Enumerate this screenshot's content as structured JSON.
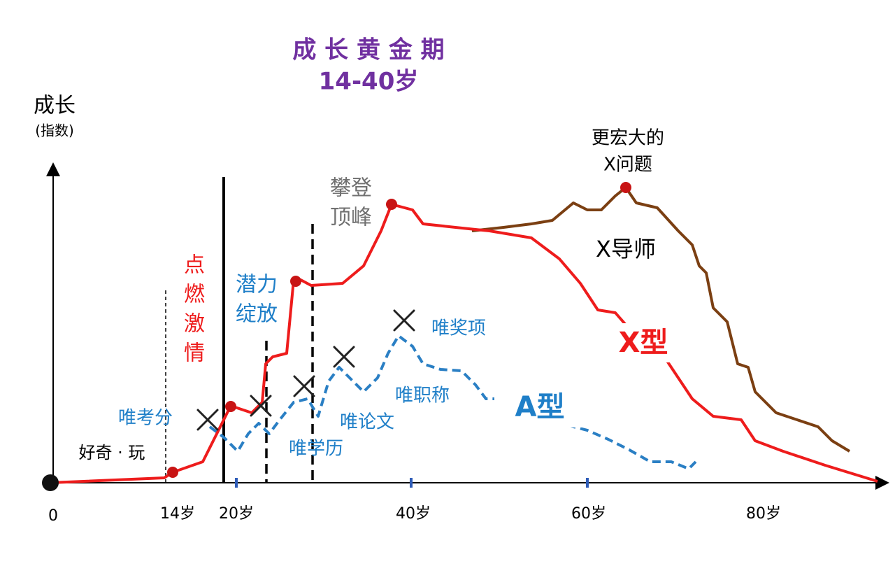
{
  "title": {
    "line1": "成 长 黄 金 期",
    "line2": "14-40岁"
  },
  "y_axis": {
    "label": "成长",
    "sublabel": "(指数)"
  },
  "x_axis": {
    "labels": [
      "0",
      "14岁",
      "20岁",
      "40岁",
      "60岁",
      "80岁"
    ]
  },
  "annotations": {
    "curious": "好奇 · 玩",
    "ignite": [
      "点",
      "燃",
      "激",
      "情"
    ],
    "potential": [
      "潜力",
      "绽放"
    ],
    "summit": [
      "攀登",
      "顶峰"
    ],
    "bigger": [
      "更宏大的",
      "X问题"
    ],
    "mentor": "X导师",
    "x_type": "X型",
    "a_type": "A型",
    "score": "唯考分",
    "degree": "唯学历",
    "paper": "唯论文",
    "title_rank": "唯职称",
    "award": "唯奖项"
  }
}
